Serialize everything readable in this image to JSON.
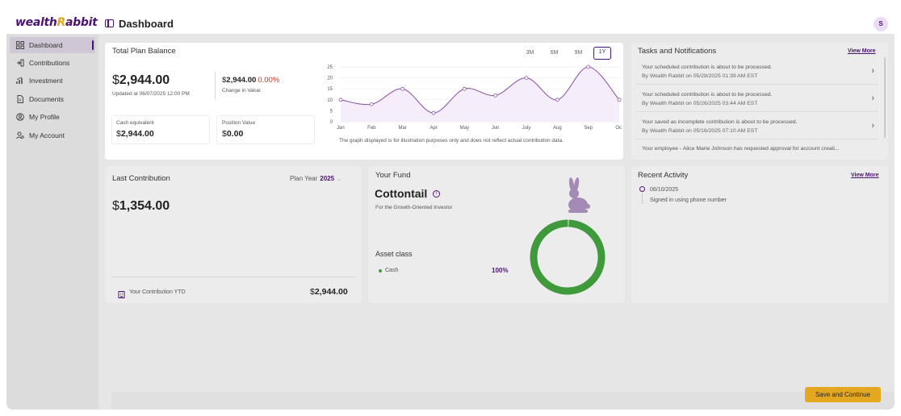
{
  "app": {
    "logo_left": "wealth",
    "logo_accent": "R",
    "logo_right": "abbit",
    "page_title": "Dashboard",
    "avatar": "S"
  },
  "sidebar": {
    "items": [
      {
        "label": "Dashboard",
        "icon": "grid-icon"
      },
      {
        "label": "Contributions",
        "icon": "contributions-icon"
      },
      {
        "label": "Investment",
        "icon": "investment-icon"
      },
      {
        "label": "Documents",
        "icon": "document-icon"
      },
      {
        "label": "My Profile",
        "icon": "profile-icon"
      },
      {
        "label": "My Account",
        "icon": "account-icon"
      }
    ]
  },
  "balance": {
    "title": "Total Plan Balance",
    "currency": "$",
    "amount": "2,944.00",
    "updated": "Updated at 06/07/2025 12:00 PM",
    "change_amount": "2,944.00",
    "change_pct": "0.00%",
    "change_label": "Change in Value",
    "cash_label": "Cash equivalent",
    "cash_amount": "2,944.00",
    "position_label": "Position Value",
    "position_amount": "0.00",
    "ranges": [
      "3M",
      "6M",
      "9M",
      "1Y"
    ],
    "active_range": "1Y",
    "note": "The graph displayed is for illustration purposes only and does not reflect actual contribution data."
  },
  "chart_data": {
    "type": "line",
    "categories": [
      "Jan",
      "Feb",
      "Mar",
      "Apr",
      "May",
      "Jun",
      "July",
      "Aug",
      "Sep",
      "Oct"
    ],
    "values": [
      10,
      8,
      15,
      4,
      15,
      12,
      20,
      10,
      25,
      10
    ],
    "ylim": [
      0,
      25
    ],
    "yticks": [
      0,
      5,
      10,
      15,
      20,
      25
    ],
    "xlabel": "",
    "ylabel": "",
    "line_color": "#8e5aa8",
    "grid": true
  },
  "tasks": {
    "title": "Tasks and Notifications",
    "view_more": "View More",
    "items": [
      {
        "title": "Your scheduled contribution is about to be processed.",
        "sub": "By Wealth Rabbit on 05/28/2025 01:39 AM EST"
      },
      {
        "title": "Your scheduled contribution is about to be processed.",
        "sub": "By Wealth Rabbit on 05/26/2025 03:44 AM EST"
      },
      {
        "title": "Your saved as incomplete contribution is about to be processed.",
        "sub": "By Wealth Rabbit on 05/16/2025 07:10 AM EST"
      },
      {
        "title": "Your employee - Alice Marie Johnson has requested approval for account creati...",
        "sub": ""
      }
    ]
  },
  "last_contribution": {
    "title": "Last Contribution",
    "plan_year_label": "Plan Year",
    "plan_year": "2025",
    "currency": "$",
    "amount": "1,354.00",
    "ytd_label": "Your Contribution YTD",
    "ytd_currency": "$",
    "ytd_amount": "2,944.00"
  },
  "fund": {
    "title": "Your Fund",
    "name": "Cottontail",
    "tagline": "For the Growth-Oriented Investor",
    "asset_class_label": "Asset class",
    "assets": [
      {
        "name": "Cash",
        "pct": "100%",
        "value": 100,
        "color": "#3f9a3c"
      }
    ]
  },
  "recent": {
    "title": "Recent Activity",
    "view_more": "View More",
    "items": [
      {
        "date": "06/10/2025",
        "text": "Signed in using phone number"
      }
    ]
  },
  "footer": {
    "save_label": "Save and Continue"
  }
}
